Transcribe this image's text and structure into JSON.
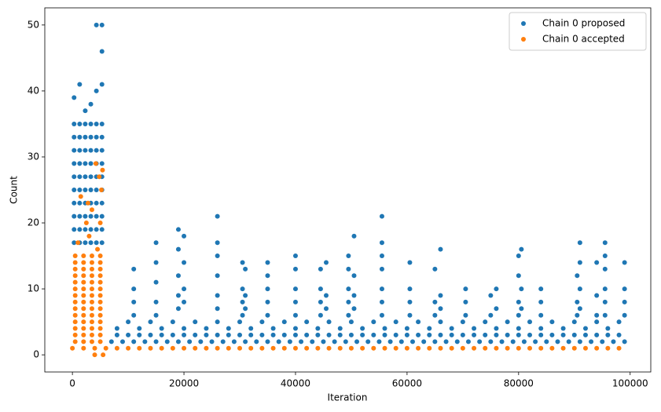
{
  "chart_data": {
    "type": "scatter",
    "xlabel": "Iteration",
    "ylabel": "Count",
    "xlim": [
      -4950,
      103700
    ],
    "ylim": [
      -2.6,
      52.6
    ],
    "xticks": [
      0,
      20000,
      40000,
      60000,
      80000,
      100000
    ],
    "yticks": [
      0,
      10,
      20,
      30,
      40,
      50
    ],
    "legend": "upper right",
    "series": [
      {
        "name": "Chain 0 proposed",
        "color": "#1f77b4",
        "x": [
          300,
          300,
          300,
          300,
          300,
          300,
          300,
          300,
          300,
          300,
          300,
          1300,
          1300,
          1300,
          1300,
          1300,
          1300,
          1300,
          1300,
          1300,
          1300,
          1300,
          2300,
          2300,
          2300,
          2300,
          2300,
          2300,
          2300,
          2300,
          2300,
          2300,
          2300,
          3300,
          3300,
          3300,
          3300,
          3300,
          3300,
          3300,
          3300,
          3300,
          3300,
          3300,
          4300,
          4300,
          4300,
          4300,
          4300,
          4300,
          4300,
          4300,
          4300,
          4300,
          4300,
          4300,
          5300,
          5300,
          5300,
          5300,
          5300,
          5300,
          5300,
          5300,
          5300,
          5300,
          5300,
          5300,
          5300,
          7000,
          9000,
          11000,
          13000,
          15000,
          17000,
          19000,
          21000,
          23000,
          25000,
          27000,
          29000,
          31000,
          33000,
          35000,
          37000,
          39000,
          41000,
          43000,
          45000,
          47000,
          49000,
          51000,
          53000,
          55000,
          57000,
          59000,
          61000,
          63000,
          65000,
          67000,
          69000,
          71000,
          73000,
          75000,
          77000,
          79000,
          81000,
          83000,
          85000,
          87000,
          89000,
          91000,
          93000,
          95000,
          97000,
          99000,
          8000,
          10000,
          12000,
          14000,
          16000,
          18000,
          20000,
          22000,
          24000,
          26000,
          28000,
          30000,
          32000,
          34000,
          36000,
          38000,
          40000,
          42000,
          44000,
          46000,
          48000,
          50000,
          52000,
          54000,
          56000,
          58000,
          60000,
          62000,
          64000,
          66000,
          68000,
          70000,
          72000,
          74000,
          76000,
          78000,
          80000,
          82000,
          84000,
          86000,
          88000,
          90000,
          92000,
          94000,
          96000,
          98000,
          8000,
          12000,
          16000,
          20000,
          24000,
          28000,
          32000,
          36000,
          40000,
          44000,
          48000,
          52000,
          56000,
          60000,
          64000,
          68000,
          72000,
          76000,
          80000,
          84000,
          88000,
          92000,
          96000,
          10000,
          14000,
          18000,
          22000,
          26000,
          30000,
          34000,
          38000,
          42000,
          46000,
          50000,
          54000,
          58000,
          62000,
          66000,
          70000,
          74000,
          78000,
          82000,
          86000,
          90000,
          94000,
          98000,
          11000,
          11000,
          11000,
          11000,
          15000,
          15000,
          15000,
          15000,
          15000,
          19000,
          19000,
          19000,
          19000,
          19000,
          20000,
          20000,
          20000,
          20000,
          26000,
          26000,
          26000,
          26000,
          26000,
          26000,
          30500,
          30500,
          30500,
          30500,
          31000,
          31000,
          31000,
          35000,
          35000,
          35000,
          35000,
          35000,
          40000,
          40000,
          40000,
          40000,
          40000,
          44500,
          44500,
          44500,
          44500,
          45500,
          45500,
          45500,
          49500,
          49500,
          49500,
          49500,
          49500,
          50500,
          50500,
          50500,
          50500,
          55500,
          55500,
          55500,
          55500,
          55500,
          55500,
          55500,
          60500,
          60500,
          60500,
          60500,
          65000,
          65000,
          65000,
          66000,
          66000,
          66000,
          70500,
          70500,
          70500,
          75000,
          75000,
          76000,
          76000,
          80000,
          80000,
          80000,
          80000,
          80500,
          80500,
          80500,
          84000,
          84000,
          84000,
          90500,
          90500,
          90500,
          91000,
          91000,
          91000,
          91000,
          94000,
          94000,
          94000,
          95500,
          95500,
          95500,
          95500,
          95500,
          95500,
          99000,
          99000,
          99000,
          99000
        ],
        "values": [
          17,
          19,
          21,
          23,
          25,
          27,
          29,
          31,
          33,
          35,
          39,
          17,
          19,
          21,
          23,
          25,
          27,
          29,
          31,
          33,
          35,
          41,
          17,
          19,
          21,
          23,
          25,
          27,
          29,
          31,
          33,
          35,
          37,
          17,
          19,
          21,
          23,
          25,
          27,
          29,
          31,
          33,
          35,
          38,
          17,
          19,
          21,
          23,
          25,
          27,
          29,
          31,
          33,
          35,
          40,
          50,
          17,
          19,
          21,
          23,
          25,
          27,
          29,
          31,
          33,
          35,
          41,
          46,
          50,
          2,
          2,
          2,
          2,
          2,
          2,
          2,
          2,
          2,
          2,
          2,
          2,
          2,
          2,
          2,
          2,
          2,
          2,
          2,
          2,
          2,
          2,
          2,
          2,
          2,
          2,
          2,
          2,
          2,
          2,
          2,
          2,
          2,
          2,
          2,
          2,
          2,
          2,
          2,
          2,
          2,
          2,
          2,
          2,
          2,
          2,
          2,
          3,
          3,
          3,
          3,
          3,
          3,
          3,
          3,
          3,
          3,
          3,
          3,
          3,
          3,
          3,
          3,
          3,
          3,
          3,
          3,
          3,
          3,
          3,
          3,
          3,
          3,
          3,
          3,
          3,
          3,
          3,
          3,
          3,
          3,
          3,
          3,
          3,
          3,
          3,
          3,
          3,
          3,
          3,
          3,
          3,
          3,
          4,
          4,
          4,
          4,
          4,
          4,
          4,
          4,
          4,
          4,
          4,
          4,
          4,
          4,
          4,
          4,
          4,
          4,
          4,
          4,
          4,
          4,
          4,
          5,
          5,
          5,
          5,
          5,
          5,
          5,
          5,
          5,
          5,
          5,
          5,
          5,
          5,
          5,
          5,
          5,
          5,
          5,
          5,
          5,
          5,
          5,
          6,
          8,
          10,
          13,
          6,
          8,
          11,
          14,
          17,
          7,
          9,
          12,
          16,
          19,
          8,
          10,
          14,
          18,
          7,
          9,
          12,
          15,
          17,
          21,
          6,
          8,
          10,
          14,
          7,
          9,
          13,
          6,
          8,
          10,
          12,
          14,
          6,
          8,
          10,
          13,
          15,
          6,
          8,
          10,
          13,
          7,
          9,
          14,
          6,
          8,
          10,
          13,
          15,
          7,
          9,
          12,
          18,
          6,
          8,
          10,
          13,
          15,
          17,
          21,
          6,
          8,
          10,
          14,
          6,
          8,
          13,
          7,
          9,
          16,
          6,
          8,
          10,
          6,
          9,
          7,
          10,
          6,
          8,
          12,
          15,
          7,
          10,
          16,
          6,
          8,
          10,
          6,
          8,
          12,
          7,
          10,
          14,
          17,
          6,
          9,
          14,
          6,
          8,
          10,
          13,
          15,
          17,
          6,
          8,
          10,
          14
        ]
      },
      {
        "name": "Chain 0 accepted",
        "color": "#ff7f0e",
        "x": [
          0,
          2000,
          4000,
          6000,
          8000,
          10000,
          12000,
          14000,
          16000,
          18000,
          20000,
          22000,
          24000,
          26000,
          28000,
          30000,
          32000,
          34000,
          36000,
          38000,
          40000,
          42000,
          44000,
          46000,
          48000,
          50000,
          52000,
          54000,
          56000,
          58000,
          60000,
          62000,
          64000,
          66000,
          68000,
          70000,
          72000,
          74000,
          76000,
          78000,
          80000,
          82000,
          84000,
          86000,
          88000,
          90000,
          92000,
          94000,
          96000,
          98000,
          500,
          500,
          500,
          500,
          500,
          500,
          500,
          500,
          500,
          500,
          500,
          500,
          500,
          500,
          2000,
          2000,
          2000,
          2000,
          2000,
          2000,
          2000,
          2000,
          2000,
          2000,
          2000,
          2000,
          2000,
          2000,
          3500,
          3500,
          3500,
          3500,
          3500,
          3500,
          3500,
          3500,
          3500,
          3500,
          3500,
          3500,
          3500,
          3500,
          5000,
          5000,
          5000,
          5000,
          5000,
          5000,
          5000,
          5000,
          5000,
          5000,
          5000,
          5000,
          5000,
          5000,
          4000,
          5500,
          1500,
          2500,
          3500,
          4200,
          5200,
          5400,
          4800,
          3000,
          1000,
          2800,
          5000,
          4500
        ],
        "values": [
          1,
          1,
          1,
          1,
          1,
          1,
          1,
          1,
          1,
          1,
          1,
          1,
          1,
          1,
          1,
          1,
          1,
          1,
          1,
          1,
          1,
          1,
          1,
          1,
          1,
          1,
          1,
          1,
          1,
          1,
          1,
          1,
          1,
          1,
          1,
          1,
          1,
          1,
          1,
          1,
          1,
          1,
          1,
          1,
          1,
          1,
          1,
          1,
          1,
          1,
          2,
          3,
          4,
          5,
          6,
          7,
          8,
          9,
          10,
          11,
          12,
          13,
          14,
          15,
          2,
          3,
          4,
          5,
          6,
          7,
          8,
          9,
          10,
          11,
          12,
          13,
          14,
          15,
          2,
          3,
          4,
          5,
          6,
          7,
          8,
          9,
          10,
          11,
          12,
          13,
          14,
          15,
          2,
          3,
          4,
          5,
          6,
          7,
          8,
          9,
          10,
          11,
          12,
          13,
          14,
          15,
          0,
          0,
          24,
          20,
          22,
          29,
          25,
          28,
          27,
          18,
          17,
          23,
          20,
          16
        ]
      }
    ]
  }
}
